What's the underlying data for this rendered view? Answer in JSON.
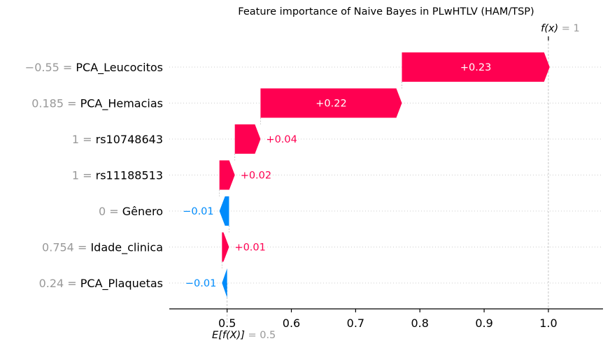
{
  "chart_data": {
    "type": "waterfall",
    "title": "Feature importance of Naive Bayes in PLwHTLV (HAM/TSP)",
    "base_value_label": "E[f(X)]",
    "base_value_text": "= 0.5",
    "base_value": 0.5,
    "output_value_label": "f(x)",
    "output_value_text": "= 1",
    "output_value": 1.0,
    "xlim": [
      0.41,
      1.085
    ],
    "xticks": [
      {
        "value": 0.5,
        "label": "0.5"
      },
      {
        "value": 0.6,
        "label": "0.6"
      },
      {
        "value": 0.7,
        "label": "0.7"
      },
      {
        "value": 0.8,
        "label": "0.8"
      },
      {
        "value": 0.9,
        "label": "0.9"
      },
      {
        "value": 1.0,
        "label": "1.0"
      }
    ],
    "colors": {
      "positive": "#ff0051",
      "negative": "#008bfb"
    },
    "features": [
      {
        "name": "PCA_Leucocitos",
        "value": "−0.55",
        "contribution": 0.23,
        "label": "+0.23",
        "start": 0.772,
        "end": 1.002
      },
      {
        "name": "PCA_Hemacias",
        "value": "0.185",
        "contribution": 0.22,
        "label": "+0.22",
        "start": 0.552,
        "end": 0.772
      },
      {
        "name": "rs10748643",
        "value": "1",
        "contribution": 0.04,
        "label": "+0.04",
        "start": 0.512,
        "end": 0.552
      },
      {
        "name": "rs11188513",
        "value": "1",
        "contribution": 0.02,
        "label": "+0.02",
        "start": 0.488,
        "end": 0.512
      },
      {
        "name": "Gênero",
        "value": "0",
        "contribution": -0.01,
        "label": "−0.01",
        "start": 0.503,
        "end": 0.488
      },
      {
        "name": "Idade_clinica",
        "value": "0.754",
        "contribution": 0.01,
        "label": "+0.01",
        "start": 0.492,
        "end": 0.503
      },
      {
        "name": "PCA_Plaquetas",
        "value": "0.24",
        "contribution": -0.01,
        "label": "−0.01",
        "start": 0.5,
        "end": 0.492
      }
    ]
  }
}
